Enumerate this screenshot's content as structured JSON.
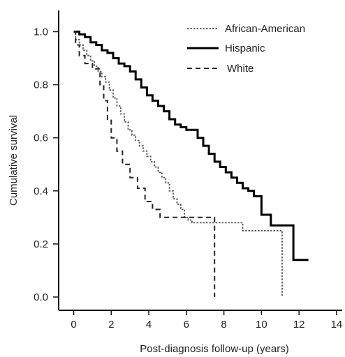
{
  "chart_data": {
    "type": "line",
    "step": true,
    "xlabel": "Post-diagnosis follow-up (years)",
    "ylabel": "Cumulative survival",
    "xlim": [
      -0.8,
      14.3
    ],
    "ylim": [
      -0.05,
      1.08
    ],
    "x_ticks": [
      0,
      2,
      4,
      6,
      8,
      10,
      12,
      14
    ],
    "x_tick_labels": [
      "0",
      "2",
      "4",
      "6",
      "8",
      "10",
      "12",
      "14"
    ],
    "y_ticks": [
      0.0,
      0.2,
      0.4,
      0.6,
      0.8,
      1.0
    ],
    "y_tick_labels": [
      "0.0",
      "0.2",
      "0.4",
      "0.6",
      "0.8",
      "1.0"
    ],
    "grid": false,
    "legend_position": "top-right",
    "series": [
      {
        "name": "African-American",
        "style": "dotted",
        "color": "#555555",
        "x": [
          0,
          0.1,
          0.3,
          0.5,
          0.7,
          0.9,
          1.1,
          1.3,
          1.5,
          1.7,
          1.9,
          2.1,
          2.3,
          2.5,
          2.7,
          2.9,
          3.1,
          3.3,
          3.5,
          3.7,
          3.9,
          4.1,
          4.3,
          4.5,
          4.7,
          4.9,
          5.1,
          5.3,
          5.5,
          5.7,
          5.9,
          6.1,
          6.3,
          7.5,
          9.0,
          11.1,
          11.1
        ],
        "y": [
          1.0,
          0.97,
          0.95,
          0.93,
          0.91,
          0.89,
          0.87,
          0.85,
          0.83,
          0.81,
          0.78,
          0.75,
          0.72,
          0.69,
          0.66,
          0.63,
          0.61,
          0.59,
          0.57,
          0.55,
          0.53,
          0.51,
          0.49,
          0.47,
          0.45,
          0.43,
          0.4,
          0.37,
          0.35,
          0.33,
          0.3,
          0.29,
          0.28,
          0.28,
          0.25,
          0.25,
          0.0
        ]
      },
      {
        "name": "Hispanic",
        "style": "solid",
        "color": "#000000",
        "x": [
          0,
          0.3,
          0.6,
          0.9,
          1.2,
          1.5,
          1.8,
          2.1,
          2.4,
          2.7,
          3.0,
          3.3,
          3.6,
          3.9,
          4.2,
          4.5,
          4.8,
          5.1,
          5.4,
          5.7,
          6.0,
          6.6,
          6.9,
          7.2,
          7.5,
          7.8,
          8.1,
          8.4,
          8.7,
          9.0,
          9.3,
          9.6,
          10.0,
          10.5,
          11.0,
          11.7,
          12.5
        ],
        "y": [
          1.0,
          0.99,
          0.98,
          0.96,
          0.95,
          0.93,
          0.92,
          0.9,
          0.88,
          0.87,
          0.85,
          0.82,
          0.79,
          0.76,
          0.74,
          0.72,
          0.7,
          0.67,
          0.65,
          0.64,
          0.63,
          0.6,
          0.57,
          0.54,
          0.51,
          0.49,
          0.47,
          0.45,
          0.43,
          0.41,
          0.4,
          0.38,
          0.31,
          0.27,
          0.27,
          0.14,
          0.14
        ]
      },
      {
        "name": "White",
        "style": "dashed",
        "color": "#222222",
        "x": [
          0,
          0.1,
          0.3,
          0.6,
          1.0,
          1.4,
          1.6,
          1.8,
          2.0,
          2.3,
          2.6,
          3.0,
          3.4,
          3.8,
          4.2,
          4.6,
          5.0,
          6.0,
          7.5,
          7.5
        ],
        "y": [
          1.0,
          0.95,
          0.91,
          0.88,
          0.86,
          0.8,
          0.74,
          0.67,
          0.6,
          0.55,
          0.5,
          0.45,
          0.41,
          0.36,
          0.33,
          0.3,
          0.3,
          0.3,
          0.3,
          0.0
        ]
      }
    ]
  }
}
